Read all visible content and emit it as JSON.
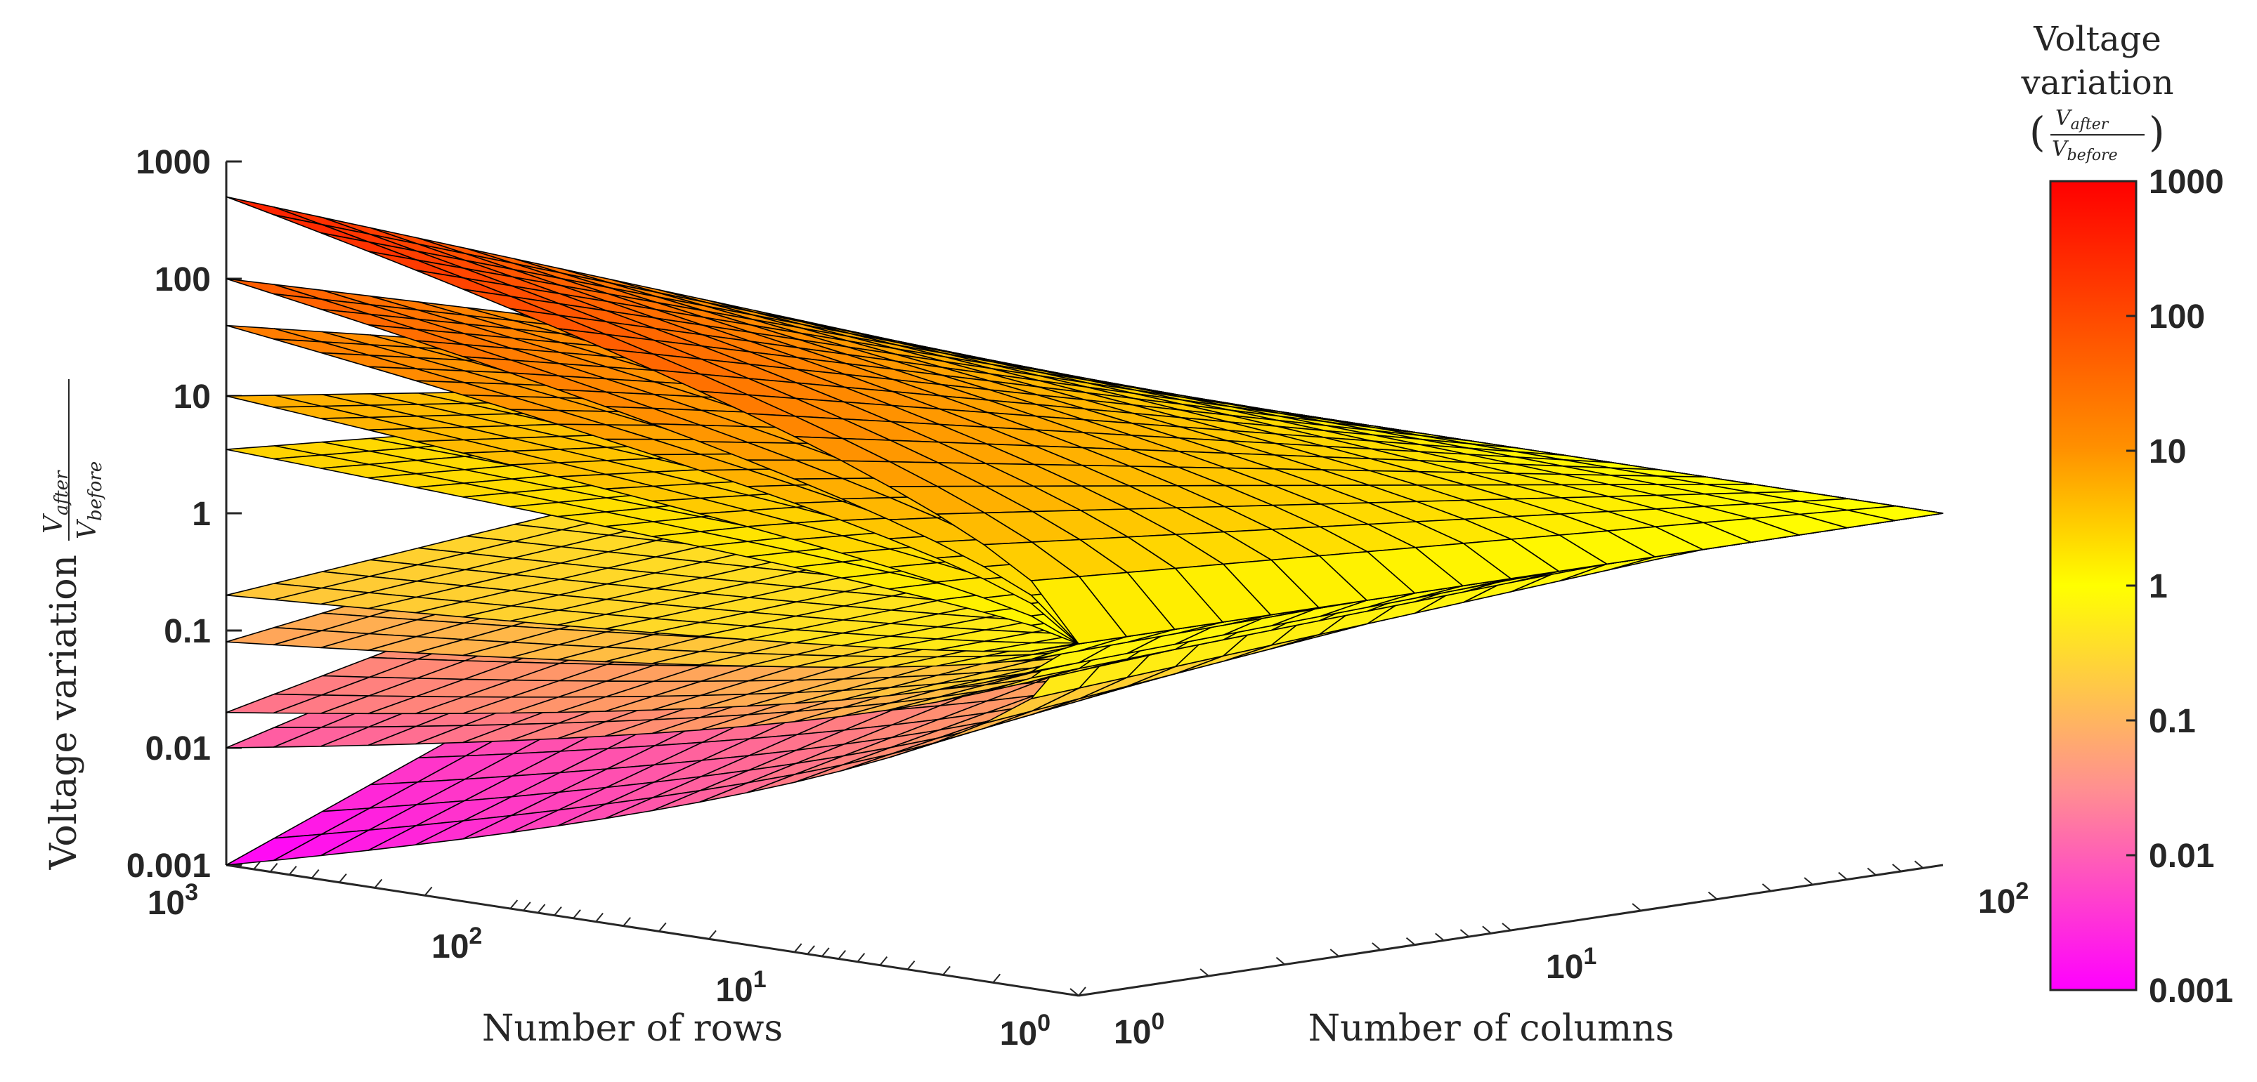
{
  "chart_data": {
    "type": "surface",
    "zlabel_prefix": "Voltage variation",
    "zlabel_fraction": {
      "numerator": "V",
      "numerator_sub": "after",
      "denominator": "V",
      "denominator_sub": "before"
    },
    "xlabel": "Number of rows",
    "ylabel": "Number of columns",
    "z_scale": "log",
    "x_scale": "log",
    "y_scale": "log",
    "zlim": [
      0.001,
      1000
    ],
    "xlim": [
      1,
      1000
    ],
    "ylim": [
      1,
      100
    ],
    "z_ticks": [
      "1000",
      "100",
      "10",
      "1",
      "0.1",
      "0.01",
      "0.001"
    ],
    "x_ticks": [
      {
        "base": "10",
        "exp": "3",
        "value": 1000
      },
      {
        "base": "10",
        "exp": "2",
        "value": 100
      },
      {
        "base": "10",
        "exp": "1",
        "value": 10
      },
      {
        "base": "10",
        "exp": "0",
        "value": 1
      }
    ],
    "y_ticks": [
      {
        "base": "10",
        "exp": "0",
        "value": 1
      },
      {
        "base": "10",
        "exp": "1",
        "value": 10
      },
      {
        "base": "10",
        "exp": "2",
        "value": 100
      }
    ],
    "surfaces_at_max_rows_min_columns": [
      500,
      100,
      40,
      10,
      3.5,
      0.2,
      0.08,
      0.02,
      0.01,
      0.001
    ],
    "converge_value": 1,
    "colorbar": {
      "title_line1": "Voltage",
      "title_line2": "variation",
      "fraction": {
        "numerator": "V",
        "numerator_sub": "after",
        "denominator": "V",
        "denominator_sub": "before"
      },
      "ticks": [
        "1000",
        "100",
        "10",
        "1",
        "0.1",
        "0.01",
        "0.001"
      ],
      "colors": [
        "#ff0000",
        "#ff7f00",
        "#ffff00",
        "#ff00ff"
      ]
    }
  }
}
